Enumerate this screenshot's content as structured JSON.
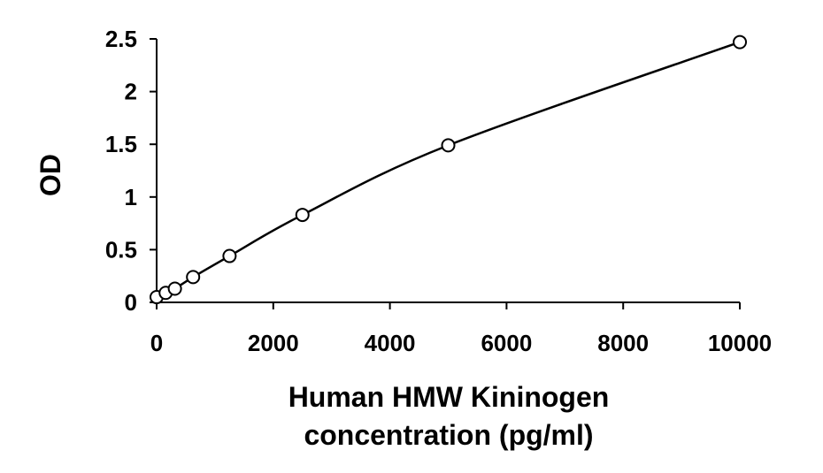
{
  "chart_data": {
    "type": "scatter",
    "title": "",
    "xlabel_lines": [
      "Human HMW Kininogen",
      "concentration (pg/ml)"
    ],
    "ylabel": "OD",
    "xlim": [
      0,
      10000
    ],
    "ylim": [
      0,
      2.5
    ],
    "x_ticks": [
      0,
      2000,
      4000,
      6000,
      8000,
      10000
    ],
    "x_tick_labels": [
      "0",
      "2000",
      "4000",
      "6000",
      "8000",
      "10000"
    ],
    "y_ticks": [
      0,
      0.5,
      1,
      1.5,
      2,
      2.5
    ],
    "y_tick_labels": [
      "0",
      "0.5",
      "1",
      "1.5",
      "2",
      "2.5"
    ],
    "grid": false,
    "legend": "none",
    "series": [
      {
        "marker": "open-circle",
        "trendline": "smooth",
        "points": [
          {
            "x": 0,
            "y": 0.05
          },
          {
            "x": 156,
            "y": 0.09
          },
          {
            "x": 313,
            "y": 0.13
          },
          {
            "x": 625,
            "y": 0.24
          },
          {
            "x": 1250,
            "y": 0.44
          },
          {
            "x": 2500,
            "y": 0.83
          },
          {
            "x": 5000,
            "y": 1.49
          },
          {
            "x": 10000,
            "y": 2.47
          }
        ]
      }
    ],
    "colors": {
      "line": "#000000",
      "marker_stroke": "#000000",
      "marker_fill": "#ffffff"
    }
  }
}
